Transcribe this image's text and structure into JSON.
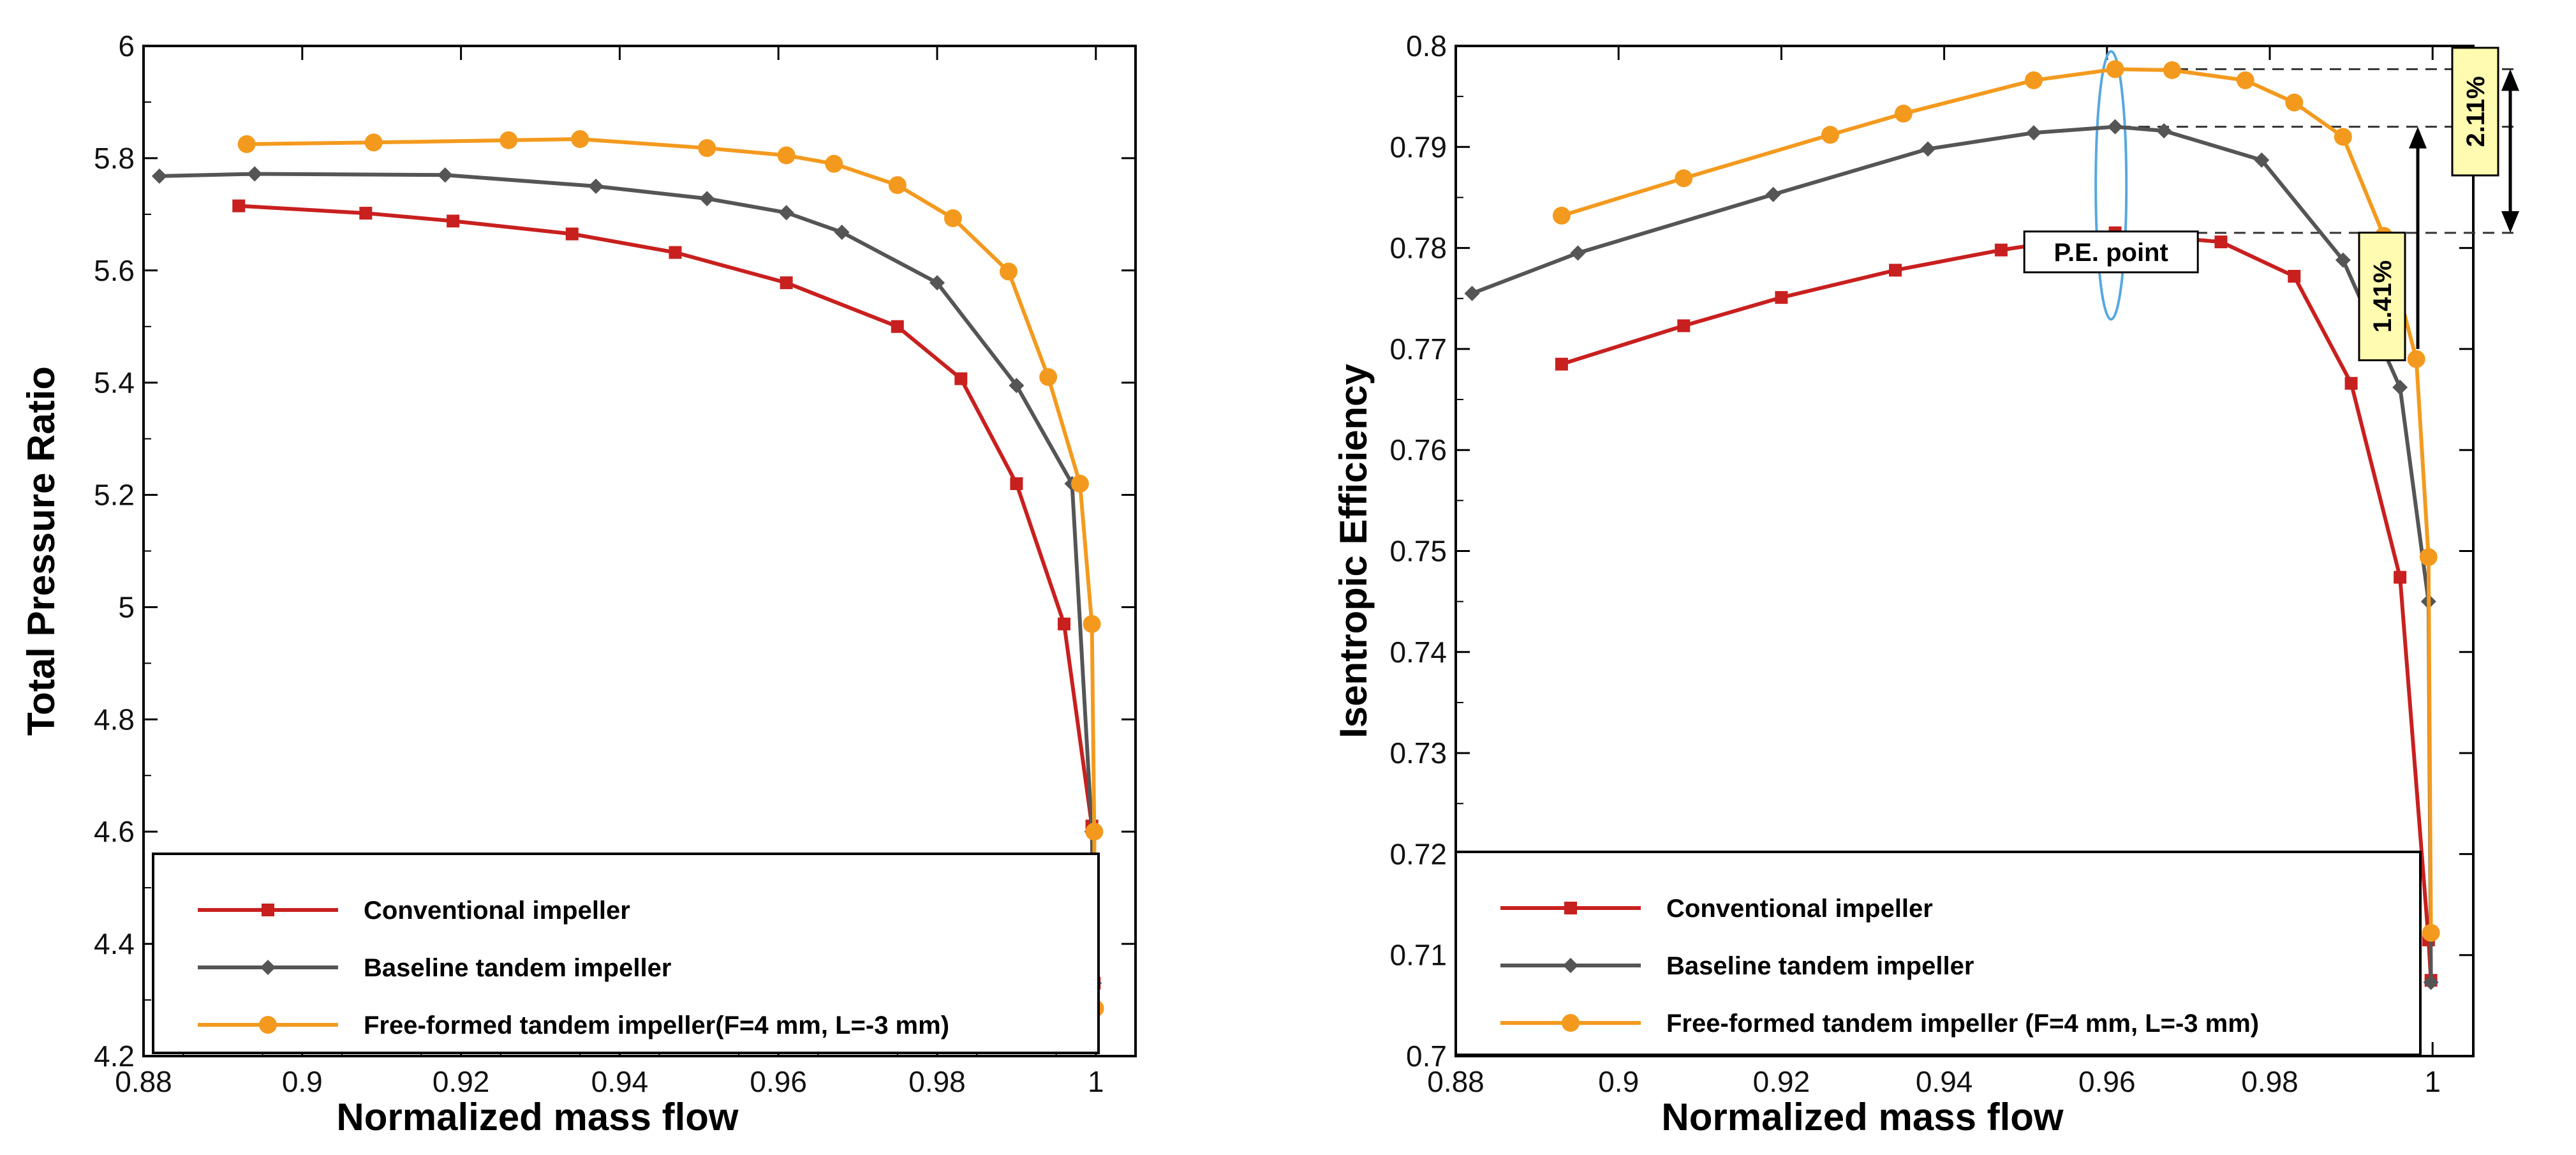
{
  "chart_data": [
    {
      "type": "line",
      "xlabel": "Normalized mass flow",
      "ylabel": "Total Pressure Ratio",
      "xlim": [
        0.88,
        1.005
      ],
      "ylim": [
        4.2,
        6.0
      ],
      "xticks": [
        "0.88",
        "0.9",
        "0.92",
        "0.94",
        "0.96",
        "0.98",
        "1"
      ],
      "yticks": [
        "4.2",
        "4.4",
        "4.6",
        "4.8",
        "5",
        "5.2",
        "5.4",
        "5.6",
        "5.8",
        "6"
      ],
      "legend_position": "bottom-left",
      "series": [
        {
          "name": "Conventional impeller",
          "color": "#c8201f",
          "marker": "square",
          "x": [
            0.892,
            0.908,
            0.919,
            0.934,
            0.947,
            0.961,
            0.975,
            0.983,
            0.99,
            0.996,
            0.9995,
            0.9998
          ],
          "y": [
            5.715,
            5.702,
            5.688,
            5.665,
            5.632,
            5.578,
            5.5,
            5.407,
            5.22,
            4.97,
            4.61,
            4.33
          ]
        },
        {
          "name": "Baseline tandem impeller",
          "color": "#555555",
          "marker": "diamond",
          "x": [
            0.882,
            0.894,
            0.918,
            0.937,
            0.951,
            0.961,
            0.968,
            0.98,
            0.99,
            0.997,
            0.9995,
            0.9998
          ],
          "y": [
            5.768,
            5.772,
            5.77,
            5.75,
            5.728,
            5.703,
            5.668,
            5.578,
            5.395,
            5.22,
            4.6,
            4.33
          ]
        },
        {
          "name": "Free-formed tandem impeller(F=4 mm, L=-3 mm)",
          "color": "#f39a1e",
          "marker": "circle",
          "x": [
            0.893,
            0.909,
            0.926,
            0.935,
            0.951,
            0.961,
            0.967,
            0.975,
            0.982,
            0.989,
            0.994,
            0.998,
            0.9995,
            0.9998,
            0.9999
          ],
          "y": [
            5.825,
            5.828,
            5.832,
            5.834,
            5.818,
            5.805,
            5.79,
            5.752,
            5.693,
            5.598,
            5.41,
            5.22,
            4.97,
            4.6,
            4.285
          ]
        }
      ]
    },
    {
      "type": "line",
      "xlabel": "Normalized mass flow",
      "ylabel": "Isentropic Efficiency",
      "xlim": [
        0.88,
        1.005
      ],
      "ylim": [
        0.7,
        0.8
      ],
      "xticks": [
        "0.88",
        "0.9",
        "0.92",
        "0.94",
        "0.96",
        "0.98",
        "1"
      ],
      "yticks": [
        "0.7",
        "0.71",
        "0.72",
        "0.73",
        "0.74",
        "0.75",
        "0.76",
        "0.77",
        "0.78",
        "0.79",
        "0.8"
      ],
      "legend_position": "bottom-left",
      "annotations": [
        "P.E. point",
        "2.11%",
        "1.41%"
      ],
      "series": [
        {
          "name": "Conventional impeller",
          "color": "#c8201f",
          "marker": "square",
          "x": [
            0.893,
            0.908,
            0.92,
            0.934,
            0.947,
            0.961,
            0.974,
            0.983,
            0.99,
            0.996,
            0.9995,
            0.9998
          ],
          "y": [
            0.7685,
            0.7723,
            0.7751,
            0.7778,
            0.7798,
            0.7815,
            0.7806,
            0.7772,
            0.7666,
            0.7474,
            0.7115,
            0.7075
          ]
        },
        {
          "name": "Baseline tandem impeller",
          "color": "#555555",
          "marker": "diamond",
          "x": [
            0.882,
            0.895,
            0.919,
            0.938,
            0.951,
            0.961,
            0.967,
            0.979,
            0.989,
            0.996,
            0.9995,
            0.9998
          ],
          "y": [
            0.7755,
            0.7795,
            0.7853,
            0.7898,
            0.7914,
            0.792,
            0.7916,
            0.7887,
            0.7788,
            0.7662,
            0.745,
            0.7073
          ]
        },
        {
          "name": "Free-formed tandem impeller (F=4 mm, L=-3 mm)",
          "color": "#f39a1e",
          "marker": "circle",
          "x": [
            0.893,
            0.908,
            0.926,
            0.935,
            0.951,
            0.961,
            0.968,
            0.977,
            0.983,
            0.989,
            0.994,
            0.998,
            0.9995,
            0.9998
          ],
          "y": [
            0.7832,
            0.7869,
            0.7912,
            0.7933,
            0.7966,
            0.7977,
            0.7976,
            0.7966,
            0.7944,
            0.791,
            0.7812,
            0.769,
            0.7494,
            0.7122
          ]
        }
      ]
    }
  ]
}
